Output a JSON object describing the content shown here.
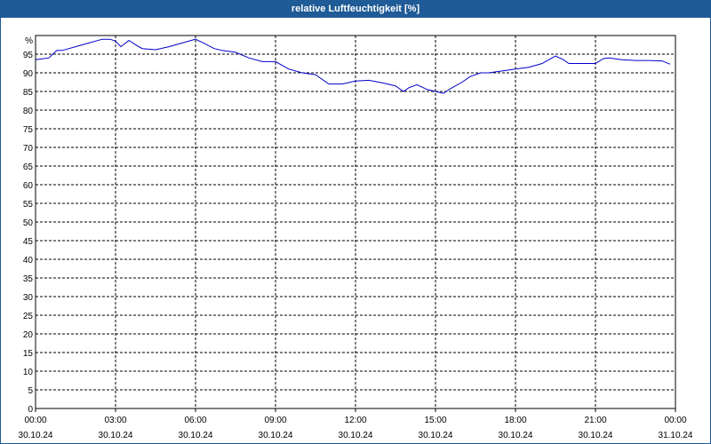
{
  "window": {
    "title": "relative Luftfeuchtigkeit [%]",
    "title_bar_color": "#1f5b96"
  },
  "chart_data": {
    "type": "line",
    "title": "relative Luftfeuchtigkeit [%]",
    "ylabel": "%",
    "xlabel": "",
    "ylim": [
      0,
      100
    ],
    "y_ticks": [
      0,
      5,
      10,
      15,
      20,
      25,
      30,
      35,
      40,
      45,
      50,
      55,
      60,
      65,
      70,
      75,
      80,
      85,
      90,
      95
    ],
    "x_ticks": [
      {
        "time": "00:00",
        "date": "30.10.24"
      },
      {
        "time": "03:00",
        "date": "30.10.24"
      },
      {
        "time": "06:00",
        "date": "30.10.24"
      },
      {
        "time": "09:00",
        "date": "30.10.24"
      },
      {
        "time": "12:00",
        "date": "30.10.24"
      },
      {
        "time": "15:00",
        "date": "30.10.24"
      },
      {
        "time": "18:00",
        "date": "30.10.24"
      },
      {
        "time": "21:00",
        "date": "30.10.24"
      },
      {
        "time": "00:00",
        "date": "31.10.24"
      }
    ],
    "x_unit": "hours since 30.10.24 00:00",
    "xlim": [
      0,
      24
    ],
    "grid": true,
    "line_color": "#0000cc",
    "series": [
      {
        "x": [
          0,
          0.5,
          0.8,
          1.0,
          1.5,
          2.0,
          2.5,
          2.8,
          3.0,
          3.2,
          3.5,
          3.8,
          4.0,
          4.5,
          5.0,
          5.5,
          6.0,
          6.3,
          6.7,
          7.0,
          7.5,
          8.0,
          8.5,
          9.0,
          9.5,
          10.0,
          10.5,
          11.0,
          11.5,
          12.0,
          12.5,
          13.0,
          13.5,
          13.8,
          14.0,
          14.3,
          14.7,
          15.0,
          15.3,
          15.5,
          16.0,
          16.3,
          16.7,
          17.0,
          17.5,
          18.0,
          18.5,
          19.0,
          19.5,
          19.8,
          20.0,
          20.5,
          21.0,
          21.3,
          21.5,
          22.0,
          22.5,
          23.0,
          23.5,
          23.8
        ],
        "values": [
          93.5,
          94,
          96,
          96,
          97,
          98,
          99,
          99,
          98.5,
          97,
          98.7,
          97.3,
          96.5,
          96.2,
          97,
          98,
          99,
          98,
          96.5,
          96,
          95.5,
          94,
          93,
          93,
          91,
          90,
          89.5,
          87,
          87,
          87.8,
          88,
          87.3,
          86.5,
          85,
          86,
          86.8,
          85.5,
          85,
          84.5,
          85.5,
          87.5,
          89,
          90,
          90,
          90.5,
          91,
          91.5,
          92.5,
          94.5,
          93.5,
          92.5,
          92.5,
          92.5,
          93.8,
          94,
          93.5,
          93.3,
          93.3,
          93.2,
          92.3
        ]
      }
    ]
  }
}
